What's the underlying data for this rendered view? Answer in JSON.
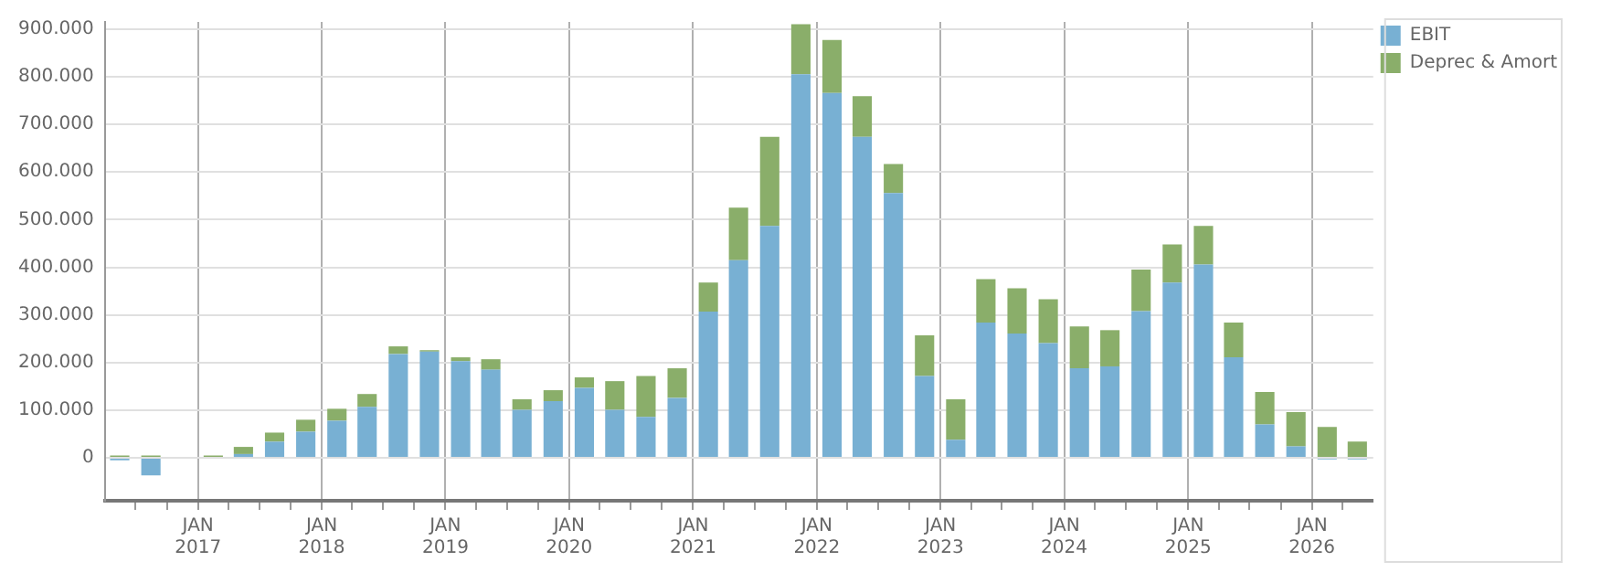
{
  "chart_data": {
    "type": "bar",
    "stacked": true,
    "x": [
      "2016-05-15",
      "2016-08-15",
      "2016-11-15",
      "2017-02-15",
      "2017-05-15",
      "2017-08-15",
      "2017-11-15",
      "2018-02-15",
      "2018-05-15",
      "2018-08-15",
      "2018-11-15",
      "2019-02-15",
      "2019-05-15",
      "2019-08-15",
      "2019-11-15",
      "2020-02-15",
      "2020-05-15",
      "2020-08-15",
      "2020-11-15",
      "2021-02-15",
      "2021-05-15",
      "2021-08-15",
      "2021-11-15",
      "2022-02-15",
      "2022-05-15",
      "2022-08-15",
      "2022-11-15",
      "2023-02-15",
      "2023-05-15",
      "2023-08-15",
      "2023-11-15",
      "2024-02-15",
      "2024-05-15",
      "2024-08-15",
      "2024-11-15",
      "2025-02-15",
      "2025-05-15",
      "2025-08-15",
      "2025-11-15",
      "2026-02-15",
      "2026-05-15"
    ],
    "series": [
      {
        "name": "EBIT",
        "color": "#78b0d3",
        "values": [
          -5000,
          -37000,
          0,
          0,
          8000,
          34000,
          55000,
          78000,
          107000,
          218000,
          223000,
          203000,
          185000,
          101000,
          119000,
          147000,
          101000,
          86000,
          126000,
          307000,
          415000,
          487000,
          805000,
          766000,
          674000,
          556000,
          172000,
          38000,
          284000,
          261000,
          241000,
          188000,
          192000,
          308000,
          368000,
          406000,
          211000,
          70000,
          24000,
          -3000,
          -3000
        ]
      },
      {
        "name": "Deprec & Amort",
        "color": "#8aae6a",
        "values": [
          5000,
          5000,
          0,
          5000,
          15000,
          19000,
          25000,
          25000,
          27000,
          16000,
          3000,
          8000,
          22000,
          22000,
          23000,
          22000,
          60000,
          86000,
          62000,
          61000,
          110000,
          187000,
          105000,
          111000,
          85000,
          61000,
          85000,
          85000,
          91000,
          95000,
          92000,
          88000,
          76000,
          87000,
          80000,
          81000,
          73000,
          68000,
          72000,
          65000,
          34000
        ]
      }
    ],
    "xlim": [
      "2016-04-01",
      "2026-07-01"
    ],
    "xticks": [
      {
        "value": "2016-07-01",
        "label": null
      },
      {
        "value": "2016-10-01",
        "label": null
      },
      {
        "value": "2017-01-01",
        "label": "JAN 2017"
      },
      {
        "value": "2017-04-01",
        "label": null
      },
      {
        "value": "2017-07-01",
        "label": null
      },
      {
        "value": "2017-10-01",
        "label": null
      },
      {
        "value": "2018-01-01",
        "label": "JAN 2018"
      },
      {
        "value": "2018-04-01",
        "label": null
      },
      {
        "value": "2018-07-01",
        "label": null
      },
      {
        "value": "2018-10-01",
        "label": null
      },
      {
        "value": "2019-01-01",
        "label": "JAN 2019"
      },
      {
        "value": "2019-04-01",
        "label": null
      },
      {
        "value": "2019-07-01",
        "label": null
      },
      {
        "value": "2019-10-01",
        "label": null
      },
      {
        "value": "2020-01-01",
        "label": "JAN 2020"
      },
      {
        "value": "2020-04-01",
        "label": null
      },
      {
        "value": "2020-07-01",
        "label": null
      },
      {
        "value": "2020-10-01",
        "label": null
      },
      {
        "value": "2021-01-01",
        "label": "JAN 2021"
      },
      {
        "value": "2021-04-01",
        "label": null
      },
      {
        "value": "2021-07-01",
        "label": null
      },
      {
        "value": "2021-10-01",
        "label": null
      },
      {
        "value": "2022-01-01",
        "label": "JAN 2022"
      },
      {
        "value": "2022-04-01",
        "label": null
      },
      {
        "value": "2022-07-01",
        "label": null
      },
      {
        "value": "2022-10-01",
        "label": null
      },
      {
        "value": "2023-01-01",
        "label": "JAN 2023"
      },
      {
        "value": "2023-04-01",
        "label": null
      },
      {
        "value": "2023-07-01",
        "label": null
      },
      {
        "value": "2023-10-01",
        "label": null
      },
      {
        "value": "2024-01-01",
        "label": "JAN 2024"
      },
      {
        "value": "2024-04-01",
        "label": null
      },
      {
        "value": "2024-07-01",
        "label": null
      },
      {
        "value": "2024-10-01",
        "label": null
      },
      {
        "value": "2025-01-01",
        "label": "JAN 2025"
      },
      {
        "value": "2025-04-01",
        "label": null
      },
      {
        "value": "2025-07-01",
        "label": null
      },
      {
        "value": "2025-10-01",
        "label": null
      },
      {
        "value": "2026-01-01",
        "label": "JAN 2026"
      },
      {
        "value": "2026-04-01",
        "label": null
      }
    ],
    "ylim": [
      -90000,
      915000
    ],
    "yticks": [
      {
        "value": 0,
        "label": "0"
      },
      {
        "value": 100000,
        "label": "100.000"
      },
      {
        "value": 200000,
        "label": "200.000"
      },
      {
        "value": 300000,
        "label": "300.000"
      },
      {
        "value": 400000,
        "label": "400.000"
      },
      {
        "value": 500000,
        "label": "500.000"
      },
      {
        "value": 600000,
        "label": "600.000"
      },
      {
        "value": 700000,
        "label": "700.000"
      },
      {
        "value": 800000,
        "label": "800.000"
      },
      {
        "value": 900000,
        "label": "900.000"
      }
    ],
    "grid": true,
    "legend": "top right"
  }
}
